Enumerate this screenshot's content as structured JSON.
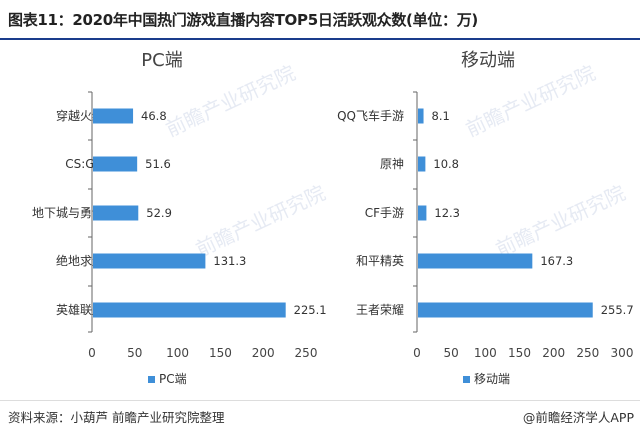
{
  "title": "图表11：2020年中国热门游戏直播内容TOP5日活跃观众数(单位：万)",
  "source": "资料来源：小葫芦 前瞻产业研究院整理",
  "attribution": "@前瞻经济学人APP",
  "watermark": "前瞻产业研究院",
  "colors": {
    "bar": "#3f8fd8",
    "axis": "#666666",
    "header_rule": "#1a3c8c"
  },
  "chart_data": [
    {
      "type": "bar",
      "orientation": "horizontal",
      "title": "PC端",
      "categories": [
        "穿越火线",
        "CS:GO",
        "地下城与勇士",
        "绝地求生",
        "英雄联盟"
      ],
      "series": [
        {
          "name": "PC端",
          "values": [
            46.8,
            51.6,
            52.9,
            131.3,
            225.1
          ]
        }
      ],
      "value_labels": [
        "46.8",
        "51.6",
        "52.9",
        "131.3",
        "225.1"
      ],
      "xticks": [
        "0",
        "50",
        "100",
        "150",
        "200",
        "250"
      ],
      "xlim": [
        0,
        250
      ],
      "grid": false,
      "legend": "bottom"
    },
    {
      "type": "bar",
      "orientation": "horizontal",
      "title": "移动端",
      "categories": [
        "QQ飞车手游",
        "原神",
        "CF手游",
        "和平精英",
        "王者荣耀"
      ],
      "series": [
        {
          "name": "移动端",
          "values": [
            8.1,
            10.8,
            12.3,
            167.3,
            255.7
          ]
        }
      ],
      "value_labels": [
        "8.1",
        "10.8",
        "12.3",
        "167.3",
        "255.7"
      ],
      "xticks": [
        "0",
        "50",
        "100",
        "150",
        "200",
        "250",
        "300"
      ],
      "xlim": [
        0,
        300
      ],
      "grid": false,
      "legend": "bottom"
    }
  ]
}
